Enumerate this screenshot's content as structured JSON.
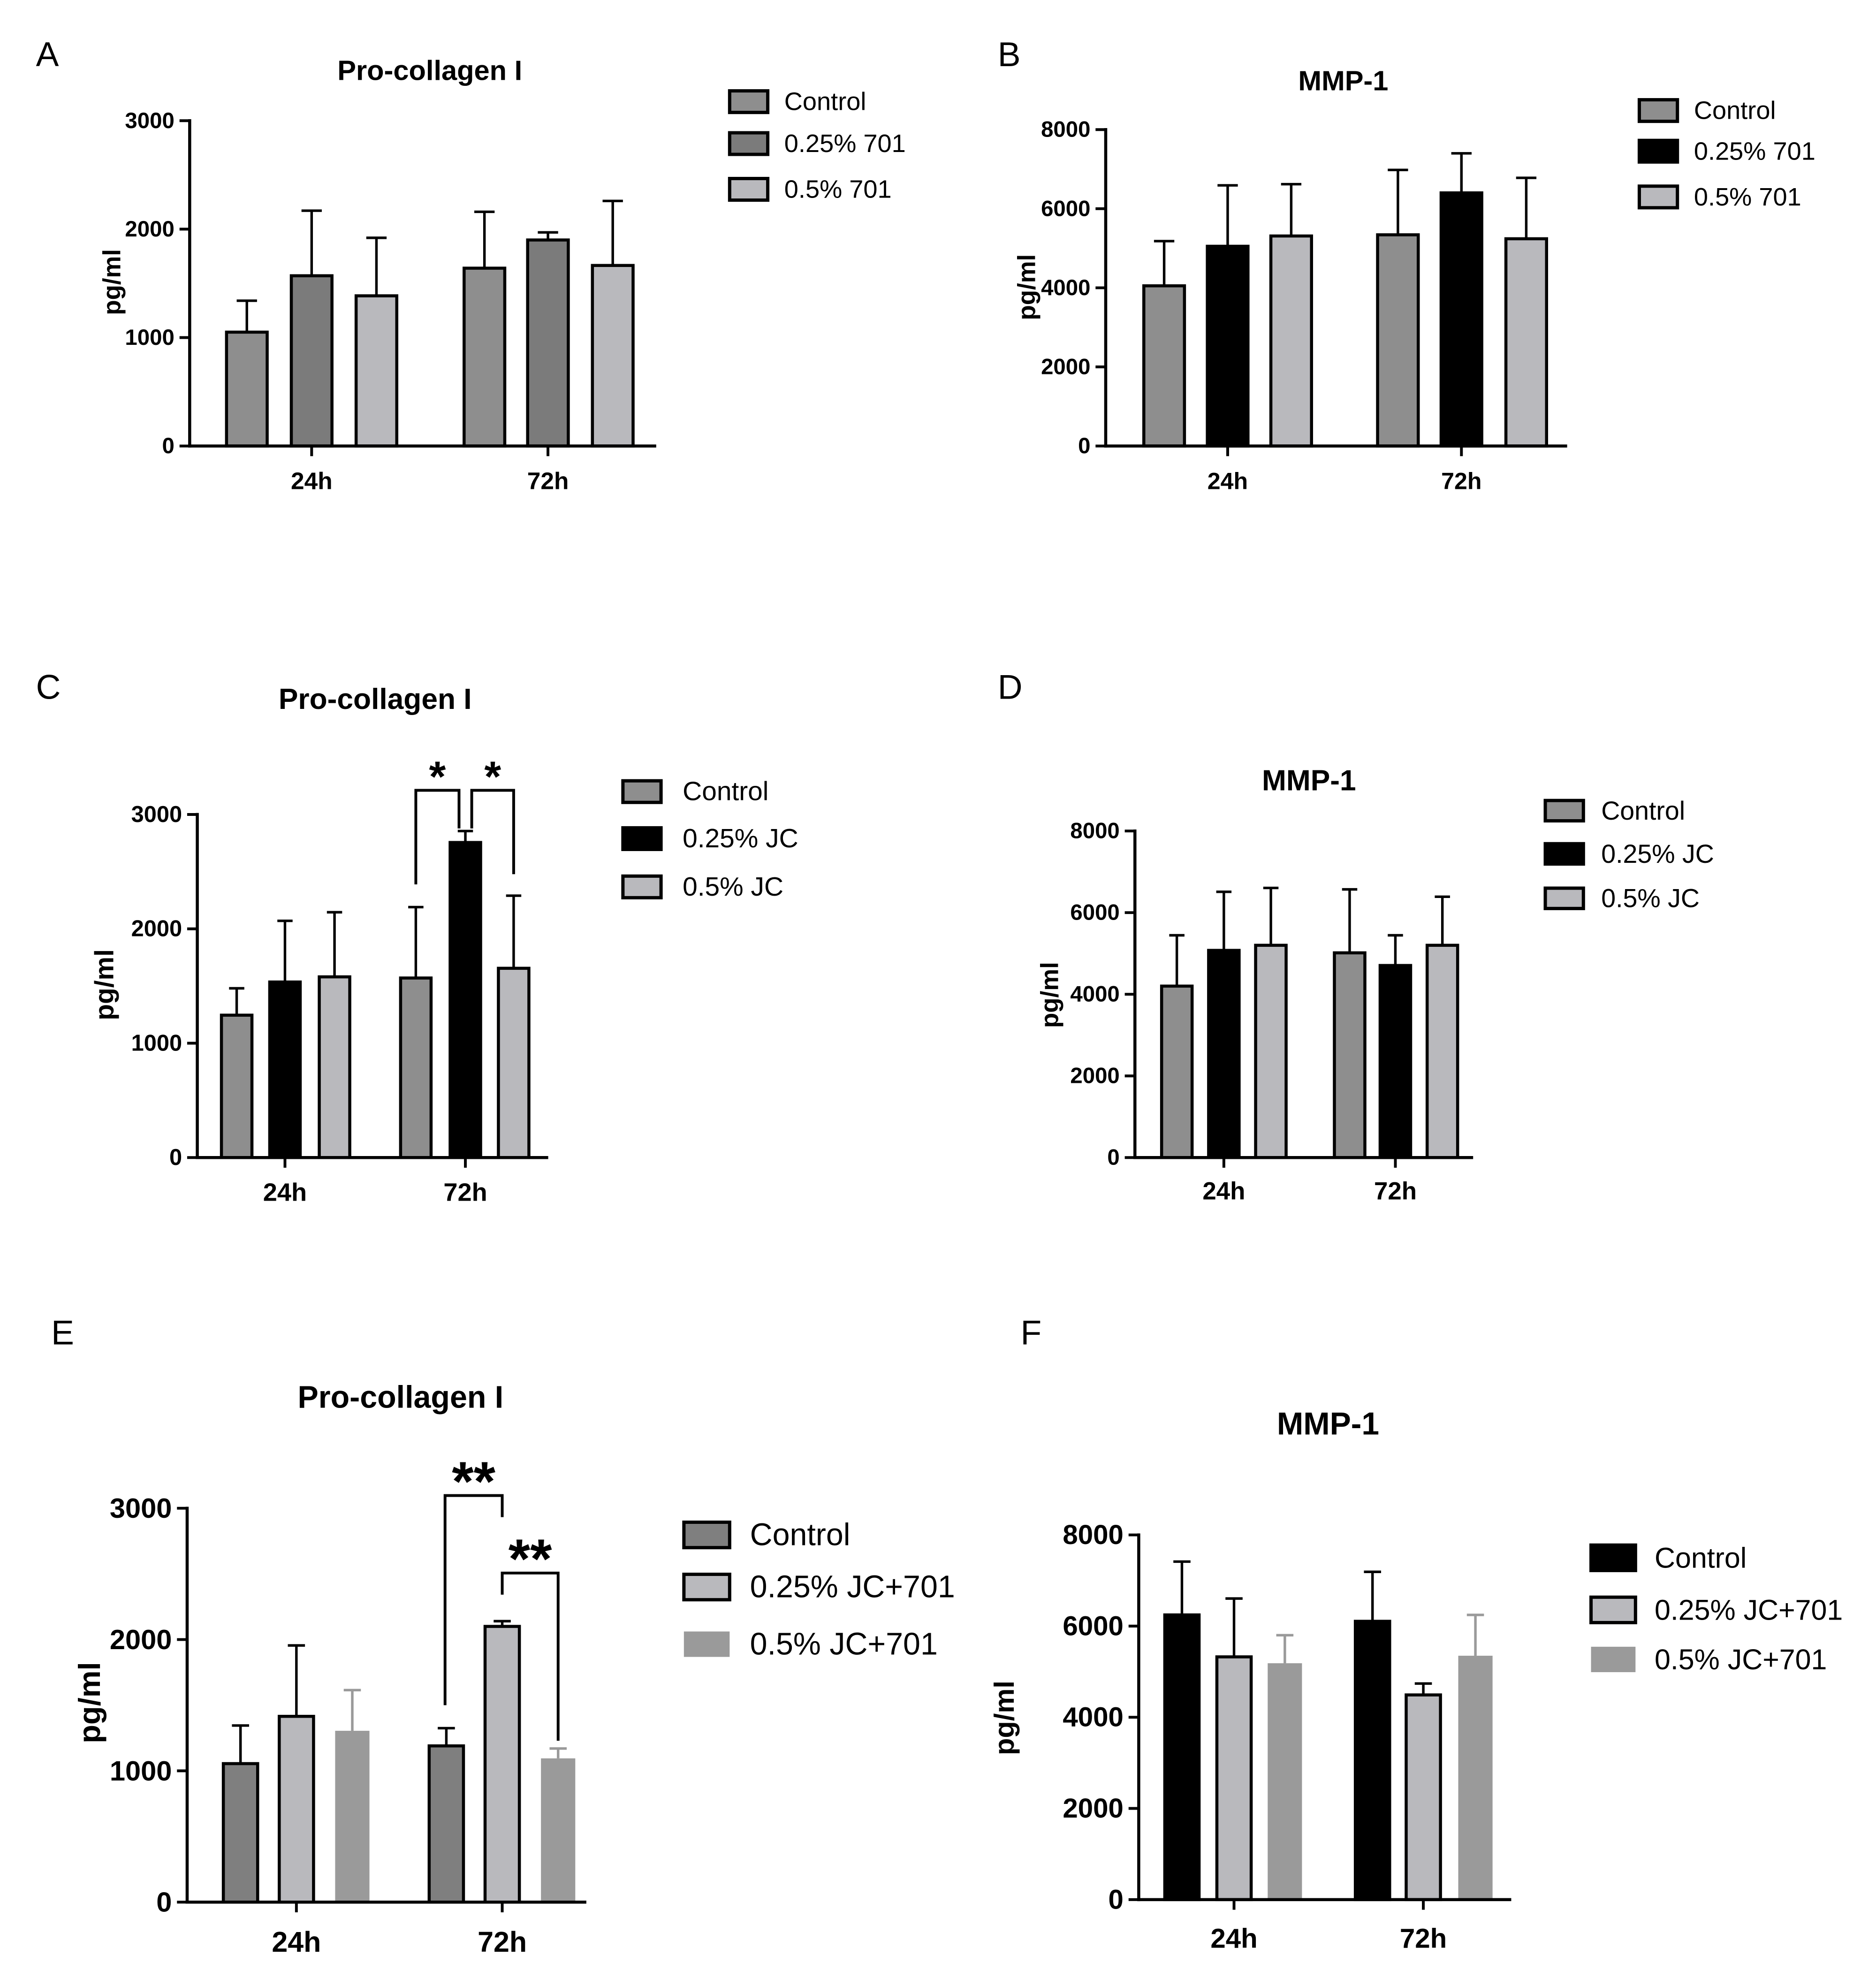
{
  "chart_data": [
    {
      "panel": "A",
      "type": "bar",
      "title": "Pro-collagen I",
      "xlabel": "",
      "ylabel": "pg/ml",
      "categories": [
        "24h",
        "72h"
      ],
      "ylim": [
        0,
        3000
      ],
      "yticks": [
        0,
        1000,
        2000,
        3000
      ],
      "series": [
        {
          "name": "Control",
          "values": [
            1050,
            1640
          ],
          "errors": [
            290,
            520
          ],
          "fill": "#8e8e8e",
          "outline": true
        },
        {
          "name": "0.25% 701",
          "values": [
            1570,
            1900
          ],
          "errors": [
            600,
            70
          ],
          "fill": "#7b7b7b",
          "outline": true
        },
        {
          "name": "0.5% 701",
          "values": [
            1385,
            1665
          ],
          "errors": [
            535,
            595
          ],
          "fill": "#b9b9bd",
          "outline": true
        }
      ],
      "significance": []
    },
    {
      "panel": "B",
      "type": "bar",
      "title": "MMP-1",
      "xlabel": "",
      "ylabel": "pg/ml",
      "categories": [
        "24h",
        "72h"
      ],
      "ylim": [
        0,
        8000
      ],
      "yticks": [
        0,
        2000,
        4000,
        6000,
        8000
      ],
      "series": [
        {
          "name": "Control",
          "values": [
            4050,
            5340
          ],
          "errors": [
            1130,
            1640
          ],
          "fill": "#8e8e8e",
          "outline": true
        },
        {
          "name": "0.25% 701",
          "values": [
            5050,
            6400
          ],
          "errors": [
            1540,
            1000
          ],
          "fill": "#000000",
          "outline": true
        },
        {
          "name": "0.5% 701",
          "values": [
            5310,
            5240
          ],
          "errors": [
            1310,
            1540
          ],
          "fill": "#b9b9bd",
          "outline": true
        }
      ],
      "significance": []
    },
    {
      "panel": "C",
      "type": "bar",
      "title": "Pro-collagen I",
      "xlabel": "",
      "ylabel": "pg/ml",
      "categories": [
        "24h",
        "72h"
      ],
      "ylim": [
        0,
        3000
      ],
      "yticks": [
        0,
        1000,
        2000,
        3000
      ],
      "series": [
        {
          "name": "Control",
          "values": [
            1245,
            1570
          ],
          "errors": [
            235,
            620
          ],
          "fill": "#8e8e8e",
          "outline": true
        },
        {
          "name": "0.25% JC",
          "values": [
            1535,
            2755
          ],
          "errors": [
            535,
            100
          ],
          "fill": "#000000",
          "outline": true
        },
        {
          "name": "0.5% JC",
          "values": [
            1580,
            1655
          ],
          "errors": [
            565,
            635
          ],
          "fill": "#b9b9bd",
          "outline": true
        }
      ],
      "significance": [
        {
          "category_index": 1,
          "series_pair": [
            0,
            1
          ],
          "label": "*"
        },
        {
          "category_index": 1,
          "series_pair": [
            1,
            2
          ],
          "label": "*"
        }
      ]
    },
    {
      "panel": "D",
      "type": "bar",
      "title": "MMP-1",
      "xlabel": "",
      "ylabel": "pg/ml",
      "categories": [
        "24h",
        "72h"
      ],
      "ylim": [
        0,
        8000
      ],
      "yticks": [
        0,
        2000,
        4000,
        6000,
        8000
      ],
      "series": [
        {
          "name": "Control",
          "values": [
            4200,
            5015
          ],
          "errors": [
            1245,
            1555
          ],
          "fill": "#8e8e8e",
          "outline": true
        },
        {
          "name": "0.25% JC",
          "values": [
            5075,
            4705
          ],
          "errors": [
            1435,
            740
          ],
          "fill": "#000000",
          "outline": true
        },
        {
          "name": "0.5% JC",
          "values": [
            5200,
            5200
          ],
          "errors": [
            1405,
            1190
          ],
          "fill": "#b9b9bd",
          "outline": true
        }
      ],
      "significance": []
    },
    {
      "panel": "E",
      "type": "bar",
      "title": "Pro-collagen I",
      "xlabel": "",
      "ylabel": "pg/ml",
      "categories": [
        "24h",
        "72h"
      ],
      "ylim": [
        0,
        3000
      ],
      "yticks": [
        0,
        1000,
        2000,
        3000
      ],
      "series": [
        {
          "name": "Control",
          "values": [
            1055,
            1190
          ],
          "errors": [
            290,
            135
          ],
          "fill": "#7f7f7f",
          "outline": true
        },
        {
          "name": "0.25% JC+701",
          "values": [
            1415,
            2100
          ],
          "errors": [
            540,
            40
          ],
          "fill": "#b9b9bd",
          "outline": true
        },
        {
          "name": "0.5% JC+701",
          "values": [
            1305,
            1095
          ],
          "errors": [
            310,
            75
          ],
          "fill": "#9a9a9a",
          "outline": false
        }
      ],
      "significance": [
        {
          "category_index": 1,
          "series_pair": [
            0,
            1
          ],
          "label": "**"
        },
        {
          "category_index": 1,
          "series_pair": [
            1,
            2
          ],
          "label": "**"
        }
      ]
    },
    {
      "panel": "F",
      "type": "bar",
      "title": "MMP-1",
      "xlabel": "",
      "ylabel": "pg/ml",
      "categories": [
        "24h",
        "72h"
      ],
      "ylim": [
        0,
        8000
      ],
      "yticks": [
        0,
        2000,
        4000,
        6000,
        8000
      ],
      "series": [
        {
          "name": "Control",
          "values": [
            6245,
            6105
          ],
          "errors": [
            1170,
            1085
          ],
          "fill": "#000000",
          "outline": true
        },
        {
          "name": "0.25% JC+701",
          "values": [
            5325,
            4490
          ],
          "errors": [
            1280,
            250
          ],
          "fill": "#b9b9bd",
          "outline": true
        },
        {
          "name": "0.5% JC+701",
          "values": [
            5185,
            5350
          ],
          "errors": [
            615,
            895
          ],
          "fill": "#9a9a9a",
          "outline": false
        }
      ],
      "significance": []
    }
  ]
}
